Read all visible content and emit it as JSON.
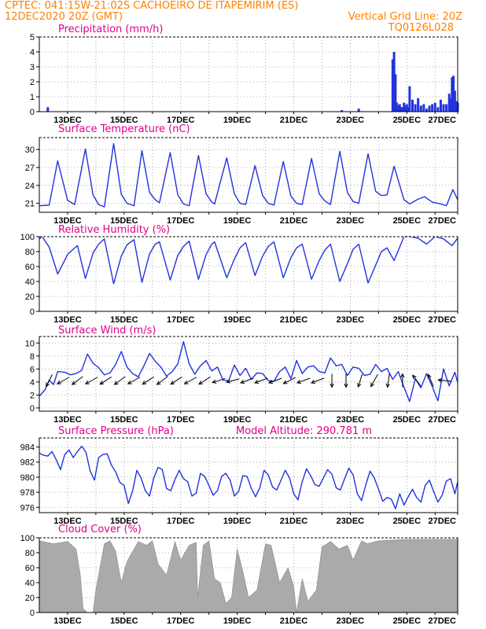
{
  "header": {
    "line1": "CPTEC:   041:15W-21:02S  CACHOEIRO DE ITAPEMIRIM (ES)",
    "line2_left": "12DEC2020 20Z (GMT)",
    "line2_right": "Vertical Grid Line: 20Z",
    "line3_right": "TQ0126L028"
  },
  "colors": {
    "header": "#ff8000",
    "panel_title": "#e0008a",
    "line": "#2233dd",
    "bar": "#2233dd",
    "cloud": "#aaaaaa",
    "arrow": "#000000"
  },
  "x_axis": {
    "labels": [
      "13DEC",
      "15DEC",
      "17DEC",
      "19DEC",
      "21DEC",
      "23DEC",
      "25DEC",
      "27DEC"
    ]
  },
  "panels": [
    {
      "id": "precip",
      "title": "Precipitation (mm/h)",
      "yticks": [
        "0",
        "1",
        "2",
        "3",
        "4",
        "5"
      ]
    },
    {
      "id": "temp",
      "title": "Surface Temperature (nC)",
      "yticks": [
        "21",
        "24",
        "27",
        "30"
      ]
    },
    {
      "id": "rh",
      "title": "Relative Humidity (%)",
      "yticks": [
        "0",
        "20",
        "40",
        "60",
        "80",
        "100"
      ]
    },
    {
      "id": "wind",
      "title": "Surface Wind (m/s)",
      "yticks": [
        "0",
        "2",
        "4",
        "6",
        "8",
        "10"
      ]
    },
    {
      "id": "pres",
      "title": "Surface Pressure (hPa)",
      "subtitle": "Model Altitude: 290.781 m",
      "yticks": [
        "976",
        "978",
        "980",
        "982",
        "984"
      ]
    },
    {
      "id": "cloud",
      "title": "Cloud Cover (%)",
      "yticks": [
        "0",
        "20",
        "40",
        "60",
        "80",
        "100"
      ]
    }
  ],
  "chart_data": [
    {
      "type": "bar",
      "title": "Precipitation (mm/h)",
      "ylim": [
        0,
        5
      ],
      "x": [
        12.3,
        22.7,
        23.3,
        24.5,
        24.55,
        24.6,
        24.65,
        24.7,
        24.75,
        24.8,
        24.85,
        24.9,
        24.95,
        25.0,
        25.05,
        25.1,
        25.2,
        25.3,
        25.4,
        25.5,
        25.6,
        25.7,
        25.8,
        25.9,
        26.0,
        26.1,
        26.2,
        26.3,
        26.4,
        26.5,
        26.55,
        26.6,
        26.65,
        26.7,
        26.75,
        26.8
      ],
      "values": [
        0.3,
        0.1,
        0.2,
        3.5,
        4.0,
        2.5,
        0.6,
        0.4,
        0.5,
        0.3,
        0.3,
        0.6,
        0.4,
        0.5,
        0.3,
        1.7,
        0.8,
        0.5,
        0.9,
        0.4,
        0.5,
        0.2,
        0.4,
        0.5,
        0.6,
        0.3,
        0.8,
        0.5,
        0.5,
        1.2,
        0.9,
        2.3,
        2.4,
        1.4,
        0.7,
        0.6
      ]
    },
    {
      "type": "line",
      "title": "Surface Temperature (nC)",
      "ylim": [
        19.5,
        32
      ],
      "x": [
        12.0,
        12.35,
        12.65,
        13.0,
        13.25,
        13.63,
        13.9,
        14.1,
        14.3,
        14.63,
        14.9,
        15.1,
        15.35,
        15.63,
        15.9,
        16.1,
        16.25,
        16.63,
        16.9,
        17.1,
        17.3,
        17.63,
        17.9,
        18.1,
        18.2,
        18.63,
        18.9,
        19.1,
        19.3,
        19.63,
        19.9,
        20.1,
        20.3,
        20.63,
        20.9,
        21.1,
        21.3,
        21.63,
        21.9,
        22.1,
        22.3,
        22.63,
        22.9,
        23.1,
        23.3,
        23.63,
        23.9,
        24.1,
        24.3,
        24.55,
        24.9,
        25.1,
        25.4,
        25.63,
        25.9,
        26.2,
        26.4,
        26.63,
        26.8
      ],
      "values": [
        20.6,
        20.7,
        28.1,
        21.5,
        20.8,
        30.1,
        22.4,
        20.8,
        20.4,
        31.0,
        22.5,
        21.0,
        20.6,
        29.8,
        22.8,
        21.6,
        21.1,
        29.5,
        22.4,
        20.9,
        20.6,
        29.0,
        22.6,
        21.2,
        20.9,
        28.6,
        22.6,
        21.0,
        20.8,
        27.3,
        22.3,
        21.0,
        20.7,
        28.0,
        22.2,
        21.0,
        20.8,
        28.5,
        22.6,
        21.4,
        20.8,
        29.7,
        22.8,
        21.3,
        21.0,
        29.3,
        23.0,
        22.3,
        22.4,
        27.2,
        21.6,
        20.9,
        21.7,
        22.1,
        21.2,
        20.9,
        20.6,
        23.3,
        21.6
      ]
    },
    {
      "type": "line",
      "title": "Relative Humidity (%)",
      "ylim": [
        0,
        100
      ],
      "x": [
        12.0,
        12.1,
        12.35,
        12.65,
        13.0,
        13.25,
        13.35,
        13.63,
        13.9,
        14.1,
        14.3,
        14.63,
        14.9,
        15.1,
        15.35,
        15.63,
        15.9,
        16.1,
        16.25,
        16.63,
        16.9,
        17.1,
        17.3,
        17.63,
        17.9,
        18.1,
        18.2,
        18.63,
        18.9,
        19.1,
        19.3,
        19.63,
        19.9,
        20.1,
        20.3,
        20.63,
        20.9,
        21.1,
        21.3,
        21.63,
        21.9,
        22.1,
        22.3,
        22.63,
        22.9,
        23.1,
        23.3,
        23.63,
        23.9,
        24.1,
        24.3,
        24.55,
        24.9,
        25.1,
        25.4,
        25.7,
        26.0,
        26.3,
        26.6,
        26.8
      ],
      "values": [
        97,
        100,
        86,
        50,
        76,
        85,
        88,
        44,
        78,
        90,
        97,
        37,
        74,
        89,
        96,
        39,
        77,
        90,
        93,
        42,
        75,
        87,
        94,
        43,
        76,
        90,
        93,
        45,
        70,
        85,
        92,
        48,
        74,
        87,
        93,
        45,
        72,
        85,
        90,
        43,
        68,
        82,
        90,
        40,
        64,
        83,
        90,
        38,
        62,
        80,
        85,
        68,
        100,
        100,
        98,
        90,
        100,
        97,
        88,
        98
      ]
    },
    {
      "type": "line",
      "title": "Surface Wind (m/s)",
      "ylim": [
        -0.5,
        11
      ],
      "x": [
        12.0,
        12.2,
        12.35,
        12.5,
        12.65,
        12.9,
        13.1,
        13.3,
        13.5,
        13.7,
        13.9,
        14.1,
        14.3,
        14.5,
        14.7,
        14.9,
        15.1,
        15.3,
        15.5,
        15.7,
        15.9,
        16.1,
        16.3,
        16.5,
        16.7,
        16.9,
        17.1,
        17.3,
        17.5,
        17.7,
        17.9,
        18.1,
        18.3,
        18.5,
        18.7,
        18.9,
        19.1,
        19.3,
        19.5,
        19.7,
        19.9,
        20.1,
        20.3,
        20.5,
        20.7,
        20.9,
        21.1,
        21.3,
        21.5,
        21.7,
        21.9,
        22.1,
        22.3,
        22.5,
        22.7,
        22.9,
        23.1,
        23.3,
        23.5,
        23.7,
        23.9,
        24.1,
        24.3,
        24.5,
        24.7,
        24.9,
        25.1,
        25.3,
        25.5,
        25.7,
        25.9,
        26.1,
        26.3,
        26.5,
        26.7,
        26.8
      ],
      "values": [
        1.8,
        2.8,
        4.3,
        3.6,
        5.6,
        5.5,
        5.1,
        5.3,
        5.8,
        8.3,
        6.9,
        6.2,
        5.1,
        5.4,
        6.7,
        8.7,
        6.3,
        5.3,
        4.8,
        6.5,
        8.4,
        7.2,
        6.3,
        4.9,
        5.6,
        6.8,
        10.2,
        6.8,
        5.2,
        6.5,
        7.3,
        5.7,
        6.3,
        4.3,
        4.2,
        6.6,
        5.0,
        6.1,
        4.4,
        5.4,
        5.3,
        4.2,
        4.1,
        5.6,
        6.3,
        4.5,
        7.3,
        5.3,
        6.3,
        6.5,
        5.6,
        5.4,
        7.7,
        6.5,
        6.7,
        5.0,
        6.3,
        6.1,
        5.0,
        5.2,
        6.7,
        5.6,
        6.1,
        4.4,
        5.6,
        3.2,
        1.0,
        4.5,
        3.1,
        5.3,
        3.3,
        1.1,
        6.0,
        3.4,
        5.5,
        3.9
      ]
    },
    {
      "type": "line",
      "title": "Surface Pressure (hPa)",
      "ylim": [
        975.3,
        985.2
      ],
      "x": [
        12.0,
        12.15,
        12.3,
        12.45,
        12.6,
        12.75,
        12.9,
        13.05,
        13.2,
        13.35,
        13.5,
        13.65,
        13.8,
        13.95,
        14.1,
        14.25,
        14.4,
        14.55,
        14.7,
        14.85,
        15.0,
        15.15,
        15.3,
        15.45,
        15.6,
        15.75,
        15.9,
        16.05,
        16.2,
        16.35,
        16.5,
        16.65,
        16.8,
        16.95,
        17.1,
        17.25,
        17.4,
        17.55,
        17.7,
        17.85,
        18.0,
        18.15,
        18.3,
        18.45,
        18.6,
        18.75,
        18.9,
        19.05,
        19.2,
        19.35,
        19.5,
        19.65,
        19.8,
        19.95,
        20.1,
        20.25,
        20.4,
        20.55,
        20.7,
        20.85,
        21.0,
        21.15,
        21.3,
        21.45,
        21.6,
        21.75,
        21.9,
        22.05,
        22.2,
        22.35,
        22.5,
        22.65,
        22.8,
        22.95,
        23.1,
        23.25,
        23.4,
        23.55,
        23.7,
        23.85,
        24.0,
        24.15,
        24.3,
        24.45,
        24.6,
        24.75,
        24.9,
        25.05,
        25.2,
        25.35,
        25.5,
        25.65,
        25.8,
        25.95,
        26.1,
        26.25,
        26.4,
        26.55,
        26.7,
        26.8
      ],
      "values": [
        983.2,
        982.9,
        982.8,
        983.4,
        982.3,
        981.0,
        983.0,
        983.6,
        982.6,
        983.4,
        984.1,
        983.3,
        980.8,
        979.6,
        982.6,
        983.0,
        983.1,
        981.6,
        980.7,
        979.3,
        978.9,
        976.5,
        978.2,
        980.9,
        979.9,
        978.2,
        977.5,
        979.9,
        981.3,
        981.0,
        978.5,
        978.2,
        979.7,
        980.9,
        979.8,
        979.4,
        977.5,
        977.9,
        980.5,
        980.1,
        978.9,
        977.6,
        978.2,
        980.1,
        980.5,
        979.6,
        977.5,
        978.1,
        980.2,
        980.1,
        978.5,
        977.4,
        978.6,
        980.9,
        980.3,
        978.7,
        978.3,
        979.6,
        980.9,
        979.9,
        977.8,
        977.0,
        979.4,
        981.1,
        980.2,
        979.0,
        978.8,
        979.9,
        981.0,
        980.4,
        978.6,
        978.3,
        979.8,
        981.2,
        980.3,
        977.8,
        976.9,
        979.0,
        980.8,
        979.9,
        978.4,
        976.8,
        977.3,
        977.1,
        975.8,
        977.8,
        976.3,
        977.4,
        978.4,
        977.3,
        976.7,
        978.9,
        979.6,
        978.1,
        976.7,
        977.6,
        979.5,
        979.8,
        977.8,
        979.4
      ]
    },
    {
      "type": "area",
      "title": "Cloud Cover (%)",
      "ylim": [
        0,
        100
      ],
      "x": [
        12.0,
        12.5,
        13.0,
        13.3,
        13.45,
        13.55,
        13.7,
        13.9,
        14.0,
        14.3,
        14.5,
        14.7,
        14.9,
        15.1,
        15.5,
        15.8,
        16.0,
        16.2,
        16.5,
        16.8,
        17.0,
        17.3,
        17.55,
        17.6,
        17.8,
        18.0,
        18.2,
        18.4,
        18.6,
        18.8,
        19.0,
        19.2,
        19.4,
        19.7,
        20.0,
        20.2,
        20.5,
        20.8,
        21.0,
        21.1,
        21.3,
        21.5,
        21.8,
        22.0,
        22.3,
        22.6,
        22.9,
        23.1,
        23.4,
        23.6,
        24.0,
        24.5,
        25.0,
        25.5,
        26.0,
        26.5,
        26.8
      ],
      "values": [
        96,
        92,
        95,
        85,
        50,
        5,
        0,
        0,
        30,
        92,
        96,
        82,
        40,
        68,
        95,
        90,
        96,
        65,
        50,
        95,
        70,
        90,
        94,
        20,
        90,
        96,
        45,
        40,
        12,
        20,
        85,
        55,
        20,
        30,
        92,
        90,
        40,
        60,
        35,
        0,
        45,
        15,
        30,
        88,
        95,
        85,
        90,
        70,
        96,
        92,
        96,
        97,
        98,
        98,
        98,
        98,
        98
      ]
    },
    {
      "type": "scatter",
      "title": "Surface Wind direction arrows",
      "x": [
        12.35,
        12.85,
        13.35,
        13.85,
        14.35,
        14.85,
        15.35,
        15.85,
        16.35,
        16.85,
        17.35,
        17.85,
        18.35,
        18.85,
        19.35,
        19.85,
        20.35,
        20.85,
        21.35,
        21.85,
        22.35,
        22.85,
        23.35,
        23.85,
        24.35,
        24.85,
        25.35,
        25.85,
        26.35
      ],
      "u": [
        0.45,
        0.9,
        0.8,
        0.9,
        0.85,
        0.8,
        0.9,
        0.85,
        0.8,
        0.85,
        0.9,
        0.85,
        0.95,
        0.95,
        0.95,
        0.95,
        0.95,
        0.9,
        0.95,
        0.95,
        0.0,
        0.0,
        0.3,
        0.5,
        0.15,
        0.0,
        0.6,
        0.4,
        1.0
      ],
      "v": [
        0.9,
        0.5,
        0.6,
        0.5,
        0.55,
        0.6,
        0.5,
        0.55,
        0.6,
        0.55,
        0.5,
        0.55,
        0.3,
        0.25,
        0.35,
        0.35,
        0.35,
        0.45,
        0.35,
        0.35,
        1.0,
        1.0,
        0.95,
        0.9,
        1.0,
        -1.0,
        -0.8,
        -0.9,
        -0.1
      ]
    }
  ]
}
